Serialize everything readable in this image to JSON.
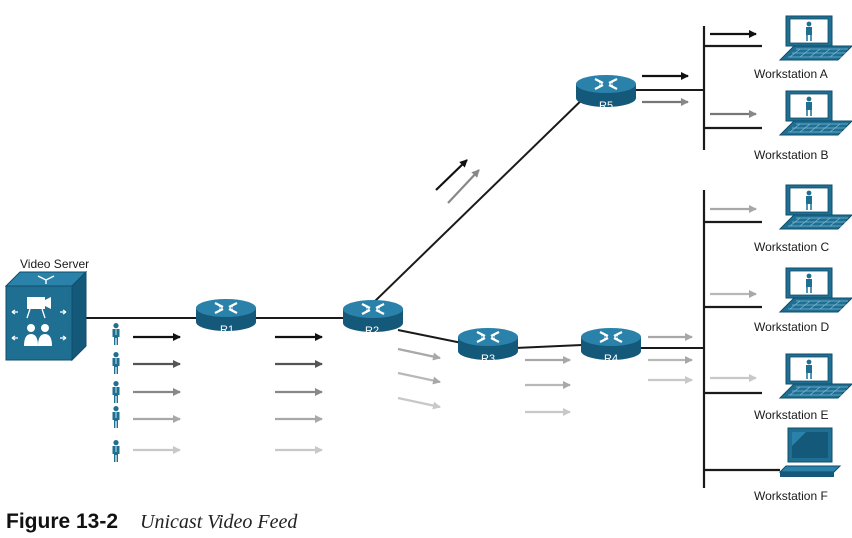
{
  "video_server": {
    "label": "Video Server"
  },
  "routers": [
    "R1",
    "R2",
    "R3",
    "R4",
    "R5"
  ],
  "workstations": [
    "Workstation A",
    "Workstation B",
    "Workstation C",
    "Workstation D",
    "Workstation E",
    "Workstation F"
  ],
  "caption": {
    "number": "Figure 13-2",
    "title": "Unicast Video Feed"
  },
  "colors": {
    "device_blue": "#1f6f93",
    "device_dark": "#0f4d6b",
    "line": "#1a1a1a",
    "arrow_shades": [
      "#111111",
      "#555555",
      "#888888",
      "#a8a8a8",
      "#c8c8c8"
    ]
  }
}
